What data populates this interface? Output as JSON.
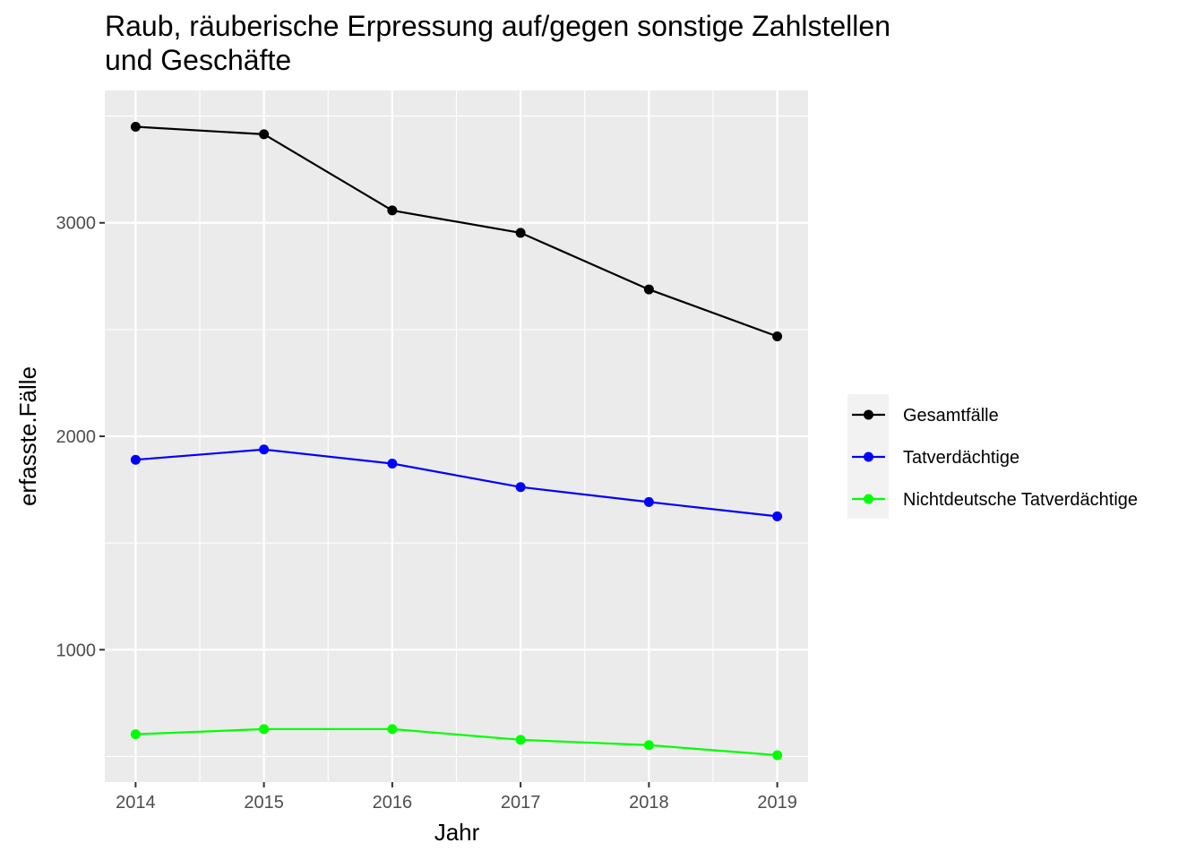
{
  "chart_data": {
    "type": "line",
    "title": [
      "Raub, räuberische Erpressung auf/gegen sonstige Zahlstellen",
      "und Geschäfte"
    ],
    "xlabel": "Jahr",
    "ylabel": "erfasste.Fälle",
    "x": [
      2014,
      2015,
      2016,
      2017,
      2018,
      2019
    ],
    "xlim": [
      2013.76,
      2019.24
    ],
    "ylim": [
      380,
      3620
    ],
    "y_ticks_major": [
      1000,
      2000,
      3000
    ],
    "y_ticks_minor": [
      500,
      1500,
      2500,
      3500
    ],
    "grid": true,
    "legend_position": "right",
    "background": "#ebebeb",
    "series": [
      {
        "name": "Gesamtfälle",
        "color": "#000000",
        "values": [
          3450,
          3415,
          3058,
          2953,
          2688,
          2468
        ]
      },
      {
        "name": "Tatverdächtige",
        "color": "#0000ff",
        "values": [
          1890,
          1938,
          1872,
          1762,
          1692,
          1625
        ]
      },
      {
        "name": "Nichtdeutsche Tatverdächtige",
        "color": "#00ff00",
        "values": [
          604,
          628,
          628,
          578,
          553,
          506
        ]
      }
    ]
  }
}
